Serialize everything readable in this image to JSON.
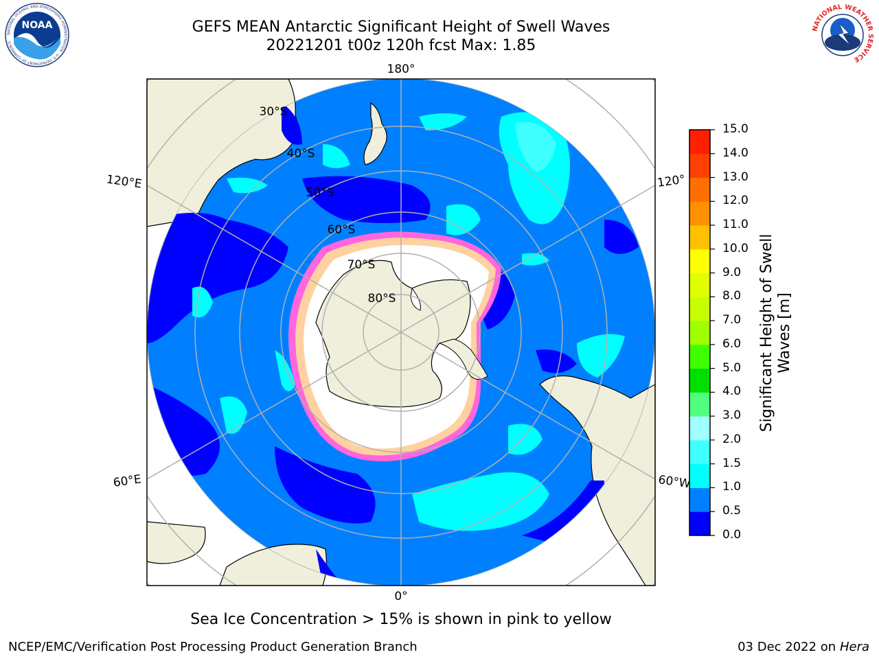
{
  "title_line1": "GEFS MEAN Antarctic Significant Height of Swell Waves",
  "title_line2": "20221201 t00z 120h fcst   Max: 1.85",
  "longitude_labels": {
    "top": "180°",
    "bottom": "0°",
    "left_upper": "120°E",
    "left_lower": "60°E",
    "right_upper": "120°",
    "right_lower": "60°W"
  },
  "latitude_labels": [
    "30°S",
    "40°S",
    "50°S",
    "60°S",
    "70°S",
    "80°S"
  ],
  "colorbar": {
    "title": "Significant Height of Swell Waves [m]",
    "ticks": [
      "15.0",
      "14.0",
      "13.0",
      "12.0",
      "11.0",
      "10.0",
      "9.0",
      "8.0",
      "7.0",
      "6.0",
      "5.0",
      "4.0",
      "3.0",
      "2.0",
      "1.5",
      "1.0",
      "0.5",
      "0.0"
    ],
    "colors": [
      "#0000ff",
      "#0080ff",
      "#00ffff",
      "#40ffff",
      "#a0ffff",
      "#50ff80",
      "#00e000",
      "#40ff00",
      "#a0ff00",
      "#c8ff00",
      "#e0ff00",
      "#ffff00",
      "#ffc000",
      "#ff9000",
      "#ff7000",
      "#ff4000",
      "#ff2000"
    ]
  },
  "ice_note": "Sea Ice Concentration > 15% is shown in pink to yellow",
  "footer": {
    "left": "NCEP/EMC/Verification Post Processing Product Generation Branch",
    "date": "03 Dec 2022 on",
    "system": "Hera"
  },
  "logos": {
    "noaa": "NOAA",
    "noaa_ring": "NATIONAL OCEANIC AND ATMOSPHERIC ADMINISTRATION · U.S. DEPARTMENT OF COMMERCE",
    "nws_ring": "NATIONAL WEATHER SERVICE"
  }
}
